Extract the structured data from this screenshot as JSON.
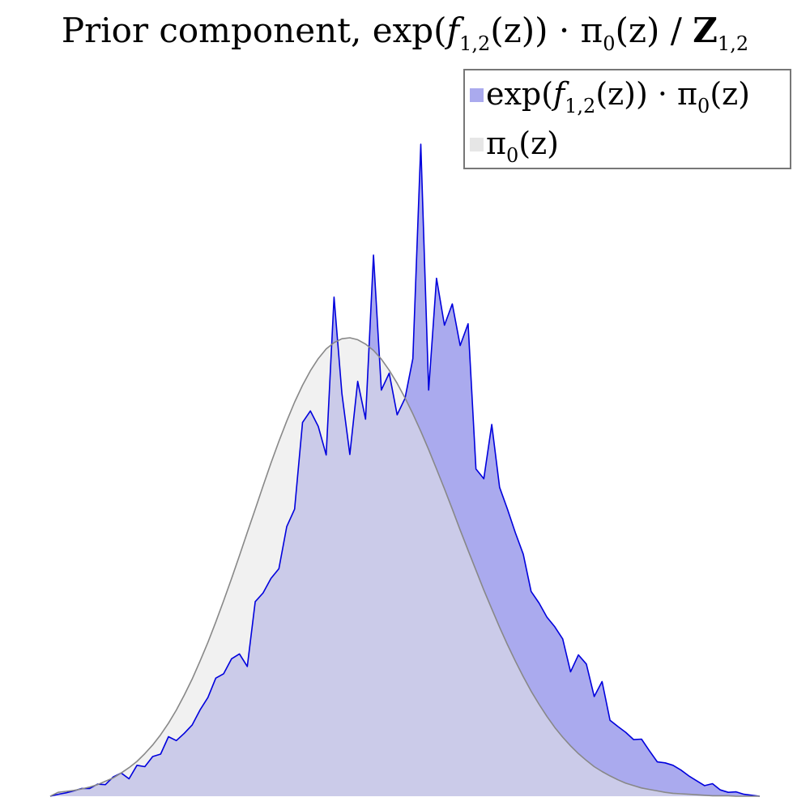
{
  "chart_data": {
    "type": "area",
    "title": "Prior component, exp(f_{1,2}(z)) · π_0(z) / Z_{1,2}",
    "xlabel": "",
    "ylabel": "",
    "grid": false,
    "axes_visible": false,
    "legend_position": "top-right",
    "ylim": [
      0,
      1
    ],
    "x": [
      -4.5,
      -4.4,
      -4.3,
      -4.2,
      -4.1,
      -4.0,
      -3.9,
      -3.8,
      -3.7,
      -3.6,
      -3.5,
      -3.4,
      -3.3,
      -3.2,
      -3.1,
      -3.0,
      -2.9,
      -2.8,
      -2.7,
      -2.6,
      -2.5,
      -2.4,
      -2.3,
      -2.2,
      -2.1,
      -2.0,
      -1.9,
      -1.8,
      -1.7,
      -1.6,
      -1.5,
      -1.4,
      -1.3,
      -1.2,
      -1.1,
      -1.0,
      -0.9,
      -0.8,
      -0.7,
      -0.6,
      -0.5,
      -0.4,
      -0.3,
      -0.2,
      -0.1,
      0.0,
      0.1,
      0.2,
      0.3,
      0.4,
      0.5,
      0.6,
      0.7,
      0.8,
      0.9,
      1.0,
      1.1,
      1.2,
      1.3,
      1.4,
      1.5,
      1.6,
      1.7,
      1.8,
      1.9,
      2.0,
      2.1,
      2.2,
      2.3,
      2.4,
      2.5,
      2.6,
      2.7,
      2.8,
      2.9,
      3.0,
      3.1,
      3.2,
      3.3,
      3.4,
      3.5,
      3.6,
      3.7,
      3.8,
      3.9,
      4.0,
      4.1,
      4.2,
      4.3,
      4.4,
      4.5
    ],
    "series": [
      {
        "name": "exp(f_{1,2}(z)) · π_0(z)",
        "color": "#0000dd",
        "fill": "#aaaaee",
        "values": [
          0.0,
          0.004,
          0.007,
          0.011,
          0.016,
          0.016,
          0.025,
          0.024,
          0.04,
          0.048,
          0.036,
          0.064,
          0.061,
          0.082,
          0.087,
          0.123,
          0.115,
          0.13,
          0.147,
          0.178,
          0.204,
          0.244,
          0.253,
          0.284,
          0.294,
          0.268,
          0.402,
          0.42,
          0.45,
          0.47,
          0.557,
          0.593,
          0.772,
          0.796,
          0.764,
          0.705,
          1.031,
          0.832,
          0.706,
          0.857,
          0.779,
          1.118,
          0.839,
          0.874,
          0.788,
          0.822,
          0.904,
          1.347,
          0.839,
          1.07,
          0.973,
          1.017,
          0.931,
          0.976,
          0.676,
          0.656,
          0.768,
          0.638,
          0.593,
          0.544,
          0.5,
          0.423,
          0.399,
          0.37,
          0.35,
          0.325,
          0.257,
          0.292,
          0.273,
          0.206,
          0.237,
          0.157,
          0.144,
          0.132,
          0.117,
          0.118,
          0.094,
          0.071,
          0.069,
          0.064,
          0.054,
          0.042,
          0.032,
          0.022,
          0.026,
          0.013,
          0.008,
          0.009,
          0.004,
          0.002,
          0.0
        ]
      },
      {
        "name": "π_0(z)",
        "color": "#888888",
        "fill": "#e6e6e6",
        "values": [
          0.0,
          0.008,
          0.01,
          0.012,
          0.015,
          0.019,
          0.024,
          0.031,
          0.038,
          0.048,
          0.059,
          0.072,
          0.088,
          0.106,
          0.127,
          0.151,
          0.178,
          0.209,
          0.242,
          0.279,
          0.318,
          0.36,
          0.404,
          0.45,
          0.497,
          0.545,
          0.593,
          0.641,
          0.688,
          0.733,
          0.775,
          0.814,
          0.849,
          0.879,
          0.904,
          0.924,
          0.937,
          0.945,
          0.947,
          0.943,
          0.934,
          0.921,
          0.903,
          0.88,
          0.853,
          0.823,
          0.79,
          0.754,
          0.716,
          0.676,
          0.635,
          0.593,
          0.55,
          0.508,
          0.467,
          0.426,
          0.387,
          0.349,
          0.313,
          0.279,
          0.247,
          0.217,
          0.19,
          0.165,
          0.142,
          0.122,
          0.104,
          0.088,
          0.074,
          0.061,
          0.051,
          0.042,
          0.034,
          0.027,
          0.022,
          0.017,
          0.014,
          0.011,
          0.008,
          0.006,
          0.005,
          0.004,
          0.003,
          0.002,
          0.001,
          0.001,
          0.001,
          0.0,
          0.0,
          0.0,
          0.0
        ]
      }
    ]
  },
  "title_parts": {
    "prefix": "Prior component, exp(",
    "f": "f",
    "f_sub": "1,2",
    "mid": "(z)) · π",
    "pi_sub": "0",
    "suffix": "(z) / ",
    "Z": "Z",
    "Z_sub": "1,2"
  },
  "legend": [
    {
      "prefix": "exp(",
      "f": "f",
      "f_sub": "1,2",
      "mid": "(z)) · π",
      "pi_sub": "0",
      "suffix": "(z)"
    },
    {
      "pi": "π",
      "pi_sub": "0",
      "suffix": "(z)"
    }
  ]
}
